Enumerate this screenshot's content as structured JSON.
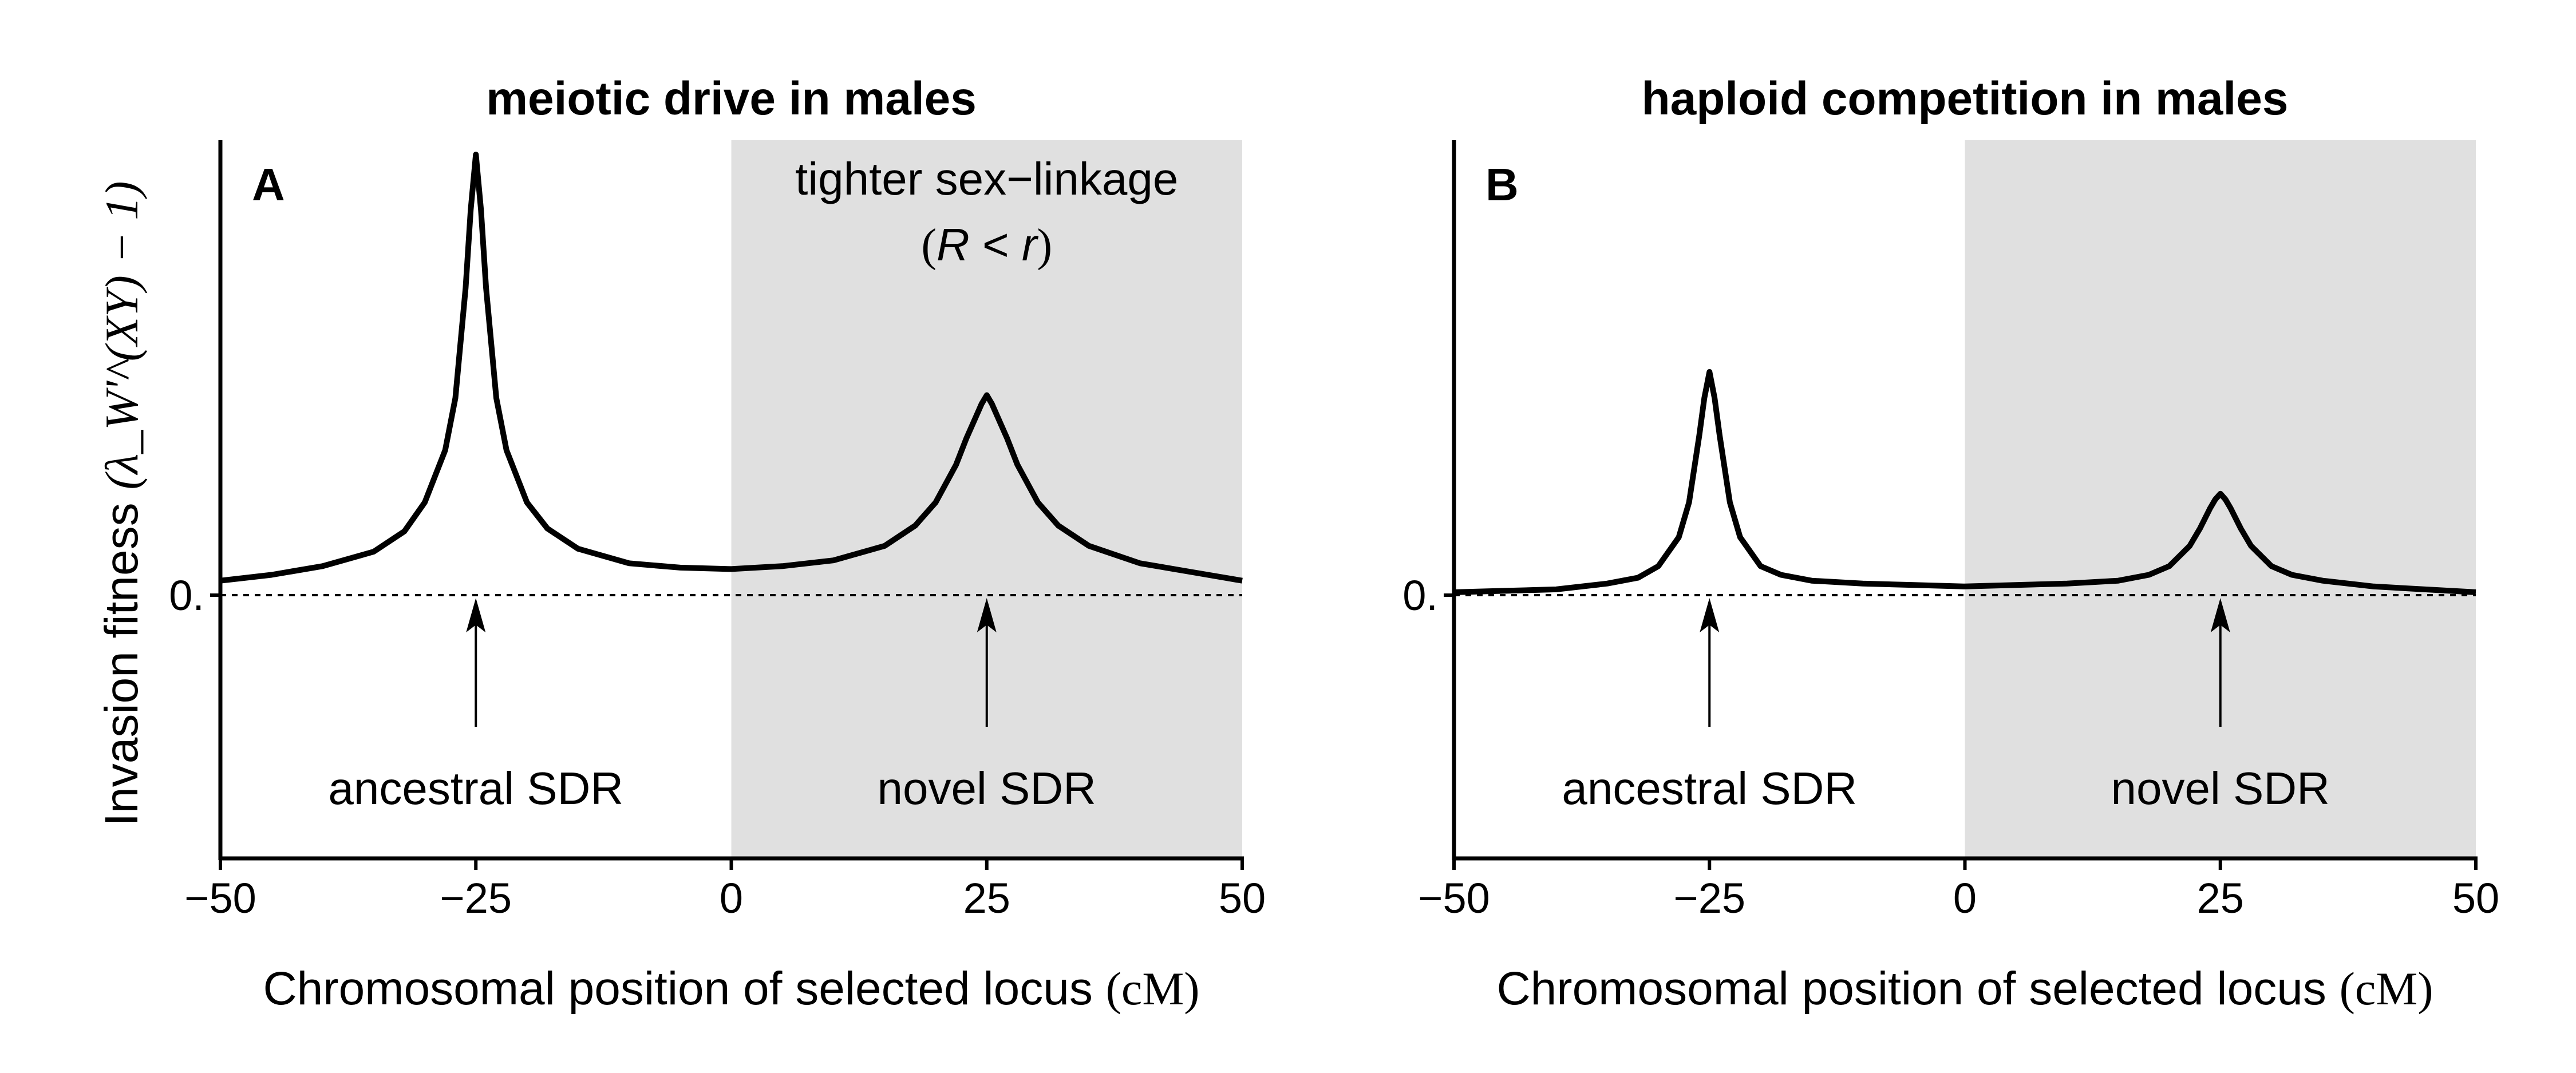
{
  "chart_data": [
    {
      "type": "line",
      "panel_label": "A",
      "title": "meiotic drive in males",
      "xlabel_main": "Chromosomal position of selected locus",
      "xlabel_unit": "(cM)",
      "ylabel_main": "Invasion fitness",
      "ylabel_math": "(λ_W'^(XY) − 1)",
      "xlim": [
        -50,
        50
      ],
      "ylim": [
        -1.0,
        1.55
      ],
      "xticks": [
        "−50",
        "−25",
        "0",
        "25",
        "50"
      ],
      "ytick_label": "0.",
      "shaded_region": {
        "from": 0,
        "to": 50,
        "color": "#e0e0e0"
      },
      "shade_text_1": "tighter sex−linkage",
      "shade_text_2_open": "(",
      "shade_text_2_R": "R",
      "shade_text_2_lt": " < ",
      "shade_text_2_r": "r",
      "shade_text_2_close": ")",
      "annotations": [
        {
          "text": "ancestral SDR",
          "x": -25
        },
        {
          "text": "novel SDR",
          "x": 25
        }
      ],
      "series": [
        {
          "x": [
            -50,
            -45,
            -40,
            -35,
            -32,
            -30,
            -28,
            -27,
            -26,
            -25.5,
            -25,
            -24.5,
            -24,
            -23,
            -22,
            -20,
            -18,
            -15,
            -10,
            -5,
            0,
            5,
            10,
            15,
            18,
            20,
            22,
            23,
            24,
            24.5,
            25,
            25.5,
            26,
            27,
            28,
            30,
            32,
            35,
            40,
            45,
            50
          ],
          "y": [
            0.05,
            0.07,
            0.1,
            0.15,
            0.22,
            0.32,
            0.5,
            0.68,
            1.06,
            1.33,
            1.52,
            1.33,
            1.06,
            0.68,
            0.5,
            0.32,
            0.23,
            0.16,
            0.11,
            0.095,
            0.09,
            0.1,
            0.12,
            0.17,
            0.24,
            0.32,
            0.45,
            0.54,
            0.62,
            0.66,
            0.69,
            0.66,
            0.62,
            0.54,
            0.45,
            0.32,
            0.24,
            0.17,
            0.11,
            0.08,
            0.05
          ],
          "color": "#000000"
        }
      ]
    },
    {
      "type": "line",
      "panel_label": "B",
      "title": "haploid competition in males",
      "xlabel_main": "Chromosomal position of selected locus",
      "xlabel_unit": "(cM)",
      "xlim": [
        -50,
        50
      ],
      "ylim": [
        -1.0,
        1.55
      ],
      "xticks": [
        "−50",
        "−25",
        "0",
        "25",
        "50"
      ],
      "ytick_label": "0.",
      "shaded_region": {
        "from": 0,
        "to": 50,
        "color": "#e0e0e0"
      },
      "annotations": [
        {
          "text": "ancestral SDR",
          "x": -25
        },
        {
          "text": "novel SDR",
          "x": 25
        }
      ],
      "series": [
        {
          "x": [
            -50,
            -45,
            -40,
            -35,
            -32,
            -30,
            -28,
            -27,
            -26,
            -25.5,
            -25,
            -24.5,
            -24,
            -23,
            -22,
            -20,
            -18,
            -15,
            -10,
            -5,
            0,
            5,
            10,
            15,
            18,
            20,
            22,
            23,
            24,
            24.5,
            25,
            25.5,
            26,
            27,
            28,
            30,
            32,
            35,
            40,
            45,
            50
          ],
          "y": [
            0.01,
            0.015,
            0.02,
            0.04,
            0.06,
            0.1,
            0.2,
            0.32,
            0.55,
            0.68,
            0.77,
            0.68,
            0.55,
            0.32,
            0.2,
            0.1,
            0.07,
            0.05,
            0.04,
            0.035,
            0.03,
            0.035,
            0.04,
            0.05,
            0.07,
            0.1,
            0.17,
            0.23,
            0.3,
            0.33,
            0.35,
            0.33,
            0.3,
            0.23,
            0.17,
            0.1,
            0.07,
            0.05,
            0.03,
            0.02,
            0.01
          ],
          "color": "#000000"
        }
      ]
    }
  ]
}
